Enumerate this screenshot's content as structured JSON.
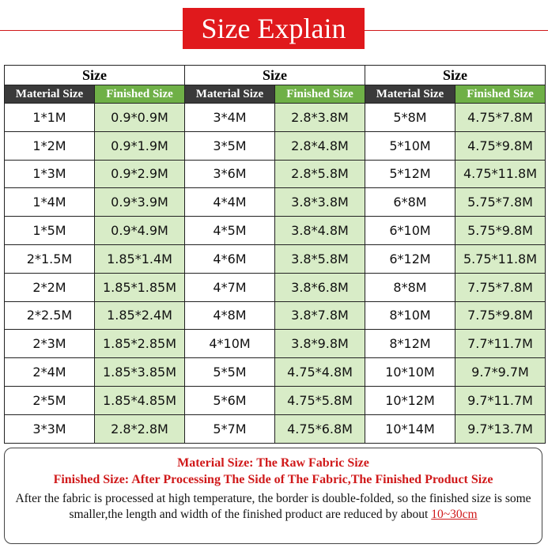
{
  "header": {
    "title": "Size Explain"
  },
  "table": {
    "groups": [
      {
        "header": "Size",
        "columns": [
          "Material Size",
          "Finished Size"
        ],
        "rows": [
          [
            "1*1M",
            "0.9*0.9M"
          ],
          [
            "1*2M",
            "0.9*1.9M"
          ],
          [
            "1*3M",
            "0.9*2.9M"
          ],
          [
            "1*4M",
            "0.9*3.9M"
          ],
          [
            "1*5M",
            "0.9*4.9M"
          ],
          [
            "2*1.5M",
            "1.85*1.4M"
          ],
          [
            "2*2M",
            "1.85*1.85M"
          ],
          [
            "2*2.5M",
            "1.85*2.4M"
          ],
          [
            "2*3M",
            "1.85*2.85M"
          ],
          [
            "2*4M",
            "1.85*3.85M"
          ],
          [
            "2*5M",
            "1.85*4.85M"
          ],
          [
            "3*3M",
            "2.8*2.8M"
          ]
        ]
      },
      {
        "header": "Size",
        "columns": [
          "Material Size",
          "Finished Size"
        ],
        "rows": [
          [
            "3*4M",
            "2.8*3.8M"
          ],
          [
            "3*5M",
            "2.8*4.8M"
          ],
          [
            "3*6M",
            "2.8*5.8M"
          ],
          [
            "4*4M",
            "3.8*3.8M"
          ],
          [
            "4*5M",
            "3.8*4.8M"
          ],
          [
            "4*6M",
            "3.8*5.8M"
          ],
          [
            "4*7M",
            "3.8*6.8M"
          ],
          [
            "4*8M",
            "3.8*7.8M"
          ],
          [
            "4*10M",
            "3.8*9.8M"
          ],
          [
            "5*5M",
            "4.75*4.8M"
          ],
          [
            "5*6M",
            "4.75*5.8M"
          ],
          [
            "5*7M",
            "4.75*6.8M"
          ]
        ]
      },
      {
        "header": "Size",
        "columns": [
          "Material Size",
          "Finished Size"
        ],
        "rows": [
          [
            "5*8M",
            "4.75*7.8M"
          ],
          [
            "5*10M",
            "4.75*9.8M"
          ],
          [
            "5*12M",
            "4.75*11.8M"
          ],
          [
            "6*8M",
            "5.75*7.8M"
          ],
          [
            "6*10M",
            "5.75*9.8M"
          ],
          [
            "6*12M",
            "5.75*11.8M"
          ],
          [
            "8*8M",
            "7.75*7.8M"
          ],
          [
            "8*10M",
            "7.75*9.8M"
          ],
          [
            "8*12M",
            "7.7*11.7M"
          ],
          [
            "10*10M",
            "9.7*9.7M"
          ],
          [
            "10*12M",
            "9.7*11.7M"
          ],
          [
            "10*14M",
            "9.7*13.7M"
          ]
        ]
      }
    ]
  },
  "notes": {
    "material": "Material Size: The Raw Fabric Size",
    "finished": "Finished Size: After Processing The Side of The Fabric,The Finished Product Size",
    "body": "After the fabric is processed at high temperature, the border is double-folded, so the finished size is some smaller,the length and width of the finished product are reduced by about ",
    "highlight": "10~30cm"
  }
}
